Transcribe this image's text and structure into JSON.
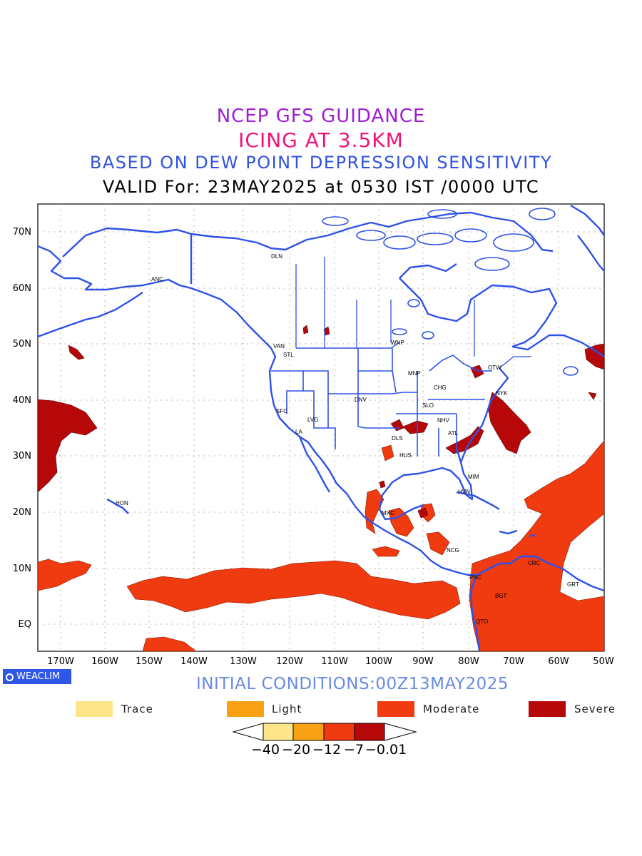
{
  "titles": {
    "line1": "NCEP GFS GUIDANCE",
    "line2": "ICING AT 3.5KM",
    "line3": "BASED ON DEW POINT DEPRESSION SENSITIVITY",
    "line4": "VALID For: 23MAY2025 at 0530 IST /0000 UTC"
  },
  "map": {
    "lat_labels": [
      "70N",
      "60N",
      "50N",
      "40N",
      "30N",
      "20N",
      "10N",
      "EQ"
    ],
    "lon_labels": [
      "170W",
      "160W",
      "150W",
      "140W",
      "130W",
      "120W",
      "110W",
      "100W",
      "90W",
      "80W",
      "70W",
      "60W",
      "50W"
    ],
    "cities": [
      {
        "name": "ANC"
      },
      {
        "name": "DLN"
      },
      {
        "name": "VAN"
      },
      {
        "name": "STL"
      },
      {
        "name": "WNP"
      },
      {
        "name": "OTW"
      },
      {
        "name": "MNP"
      },
      {
        "name": "CHG"
      },
      {
        "name": "NYK"
      },
      {
        "name": "DNV"
      },
      {
        "name": "SFC"
      },
      {
        "name": "LVG"
      },
      {
        "name": "SLO"
      },
      {
        "name": "NHV"
      },
      {
        "name": "LA"
      },
      {
        "name": "ATL"
      },
      {
        "name": "DLS"
      },
      {
        "name": "HUS"
      },
      {
        "name": "MIM"
      },
      {
        "name": "HON"
      },
      {
        "name": "HVN"
      },
      {
        "name": "MXC"
      },
      {
        "name": "NCG"
      },
      {
        "name": "CRC"
      },
      {
        "name": "PNC"
      },
      {
        "name": "GRT"
      },
      {
        "name": "BGT"
      },
      {
        "name": "QTO"
      }
    ],
    "coast_color": "#2e52e8",
    "moderate_color": "#f03a0f",
    "severe_color": "#b60808"
  },
  "branding": {
    "badge": "WEACLIM",
    "initial_conditions": "INITIAL CONDITIONS:00Z13MAY2025"
  },
  "legend": [
    {
      "label": "Trace",
      "color": "#fde68a"
    },
    {
      "label": "Light",
      "color": "#f8a115"
    },
    {
      "label": "Moderate",
      "color": "#f03a0f"
    },
    {
      "label": "Severe",
      "color": "#b60808"
    }
  ],
  "colorbar": {
    "ticks": [
      "−40",
      "−20",
      "−12",
      "−7",
      "−0.01"
    ]
  }
}
